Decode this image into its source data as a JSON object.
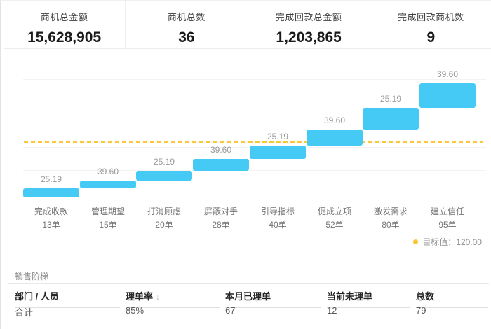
{
  "kpi_cards": [
    {
      "label": "商机总金额",
      "value": "15,628,905"
    },
    {
      "label": "商机总数",
      "value": "36"
    },
    {
      "label": "完成回款总金额",
      "value": "1,203,865"
    },
    {
      "label": "完成回款商机数",
      "value": "9"
    }
  ],
  "chart_data": {
    "type": "bar",
    "subtype": "staircase-funnel",
    "categories": [
      "完成收款",
      "管理期望",
      "打消顾虑",
      "屏蔽对手",
      "引导指标",
      "促成立项",
      "激发需求",
      "建立信任"
    ],
    "counts": [
      "13单",
      "15单",
      "20单",
      "28单",
      "40单",
      "52单",
      "80单",
      "95单"
    ],
    "values": [
      25.19,
      39.6,
      25.19,
      39.6,
      25.19,
      39.6,
      25.19,
      39.6
    ],
    "value_labels": [
      "25.19",
      "39.60",
      "25.19",
      "39.60",
      "25.19",
      "39.60",
      "25.19",
      "39.60"
    ],
    "target_value": 120.0,
    "legend": {
      "target_label": "目标值：120.00"
    },
    "layout": {
      "grid": "horizontal-lines",
      "legend_position": "bottom-right"
    },
    "colors": {
      "bar": "#45c9f5",
      "target_line": "#fbc836",
      "legend_dot": "#fbc531"
    }
  },
  "table": {
    "title": "销售阶梯",
    "columns": [
      {
        "label": "部门 / 人员"
      },
      {
        "label": "理单率",
        "sort_icon": "↓"
      },
      {
        "label": "本月已理单"
      },
      {
        "label": "当前未理单"
      },
      {
        "label": "总数"
      }
    ],
    "rows": [
      {
        "dept": "合计",
        "rate": "85%",
        "done": "67",
        "pending": "12",
        "total": "79"
      }
    ]
  }
}
